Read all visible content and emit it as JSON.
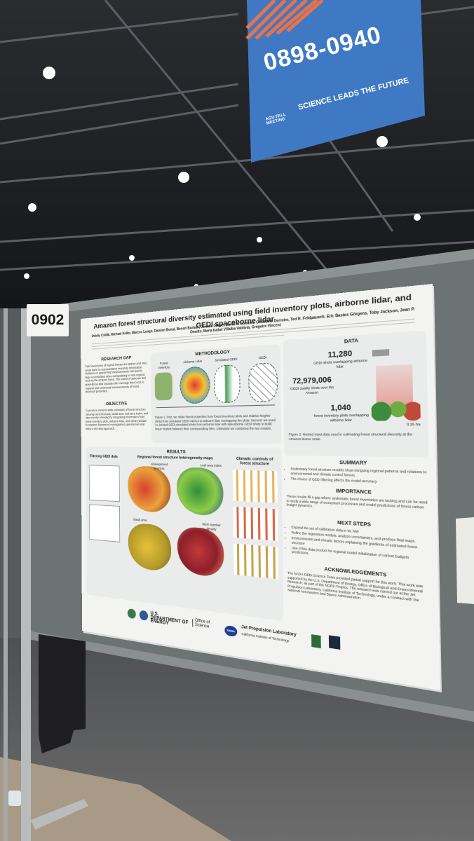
{
  "sign": {
    "code": "0898-0940",
    "org": "AGU FALL MEETING",
    "tagline": "SCIENCE LEADS THE FUTURE"
  },
  "booth": {
    "number": "0902"
  },
  "poster": {
    "title": "Amazon forest structural diversity estimated using field inventory plots, airborne lidar, and GEDI spaceborne lidar",
    "authors": "Ovidiu Csillik, Michael Keller, Marcos Longo, Damien Bonal, Benoit Burban, Jérôme Chave, David A. Coomes, Géraldine Derroire, Ted R. Feldpausch, Eric Bastos Görgens, Toby Jackson, Jean P. Ometto, Maria Isabel Villalba Valdivia, Grégoire Vincent",
    "research_gap": {
      "heading": "RESEARCH GAP",
      "text": "Field inventories of tropical forests are sparse and vast areas have no representative inventory information. Reliance on sparse field measurements can lead to large uncertainties when extrapolating to vast regions such as the Amazon forest. The extent of airborne and spaceborne lidar expands the coverage from local to regional and continental measurements of forest structural properties."
    },
    "objective": {
      "heading": "OBJECTIVE",
      "text": "To produce Amazon-wide estimates of forest structure (aboveground biomass, basal area, leaf area index, and stem number density) by integrating information from forest inventory plots, airborne lidar, and GEDI (Global Ecosystem Dynamics Investigation) spaceborne lidar using a two-step approach."
    },
    "methodology": {
      "heading": "METHODOLOGY",
      "labels": [
        "Forest inventory",
        "Airborne Lidar",
        "Simulated GEDI",
        "GEDI"
      ],
      "caption": "Figure 1. First, we relate forest properties from forest inventory plots and relative heights (RHs) from simulated GEDI metrics to airborne lidar overlapping the plots. Second, we used co-located GEDI-simulated shots from airborne lidar with spaceborne GEDI shots to build linear models between their corresponding RHs. Ultimately we combined the two models."
    },
    "data": {
      "heading": "DATA",
      "items": [
        {
          "number": "11,280",
          "label": "GEDI shots overlapping airborne lidar"
        },
        {
          "number": "72,979,006",
          "label": "GEDI quality shots over the Amazon"
        },
        {
          "number": "1,040",
          "label": "forest inventory plots overlapping airborne lidar"
        }
      ],
      "plot_size": "0.25 ha",
      "caption": "Figure 2. Nested input data used in estimating forest structural diversity at the Amazon biome scale."
    },
    "results": {
      "heading": "RESULTS",
      "panels": [
        "Filtering GEDI data",
        "Regional forest structure heterogeneity maps",
        "Climatic controls of forest structure"
      ],
      "maps": [
        "Aboveground biomass",
        "Leaf area index",
        "Basal area",
        "Stem number density"
      ]
    },
    "summary": {
      "heading": "SUMMARY",
      "bullets": [
        "Preliminary forest structure models show intriguing regional patterns and relations to environmental and climatic control factors.",
        "The choice of GEDI filtering affects the model accuracy"
      ]
    },
    "importance": {
      "heading": "IMPORTANCE",
      "text": "These results fill a gap where systematic forest inventories are lacking and can be used to study a wide range of ecosystem processes and model predictions of forest carbon budget dynamics."
    },
    "next_steps": {
      "heading": "NEXT STEPS",
      "bullets": [
        "Expand the set of calibration data in W, NW",
        "Refine the regression models, analyze uncertainties, and produce final maps.",
        "Environmental and climatic factors explaining the gradients of estimated forest structure",
        "Use of the data product for regional model initialization of carbon budgets predictions."
      ]
    },
    "acknowledgements": {
      "heading": "ACKNOWLEDGEMENTS",
      "text": "The NASA GEDI Science Team provided partial support for this work. This work was supported by the U.S. Department of Energy, Office of Biological and Environmental Research, as part of the NGEE-Tropics. The research was carried out at the Jet Propulsion Laboratory, California Institute of Technology, under a contract with the National Aeronautics and Space Administration."
    },
    "logos": [
      "U.S. DEPARTMENT OF ENERGY",
      "Office of Science",
      "NASA",
      "Jet Propulsion Laboratory",
      "California Institute of Technology"
    ]
  }
}
